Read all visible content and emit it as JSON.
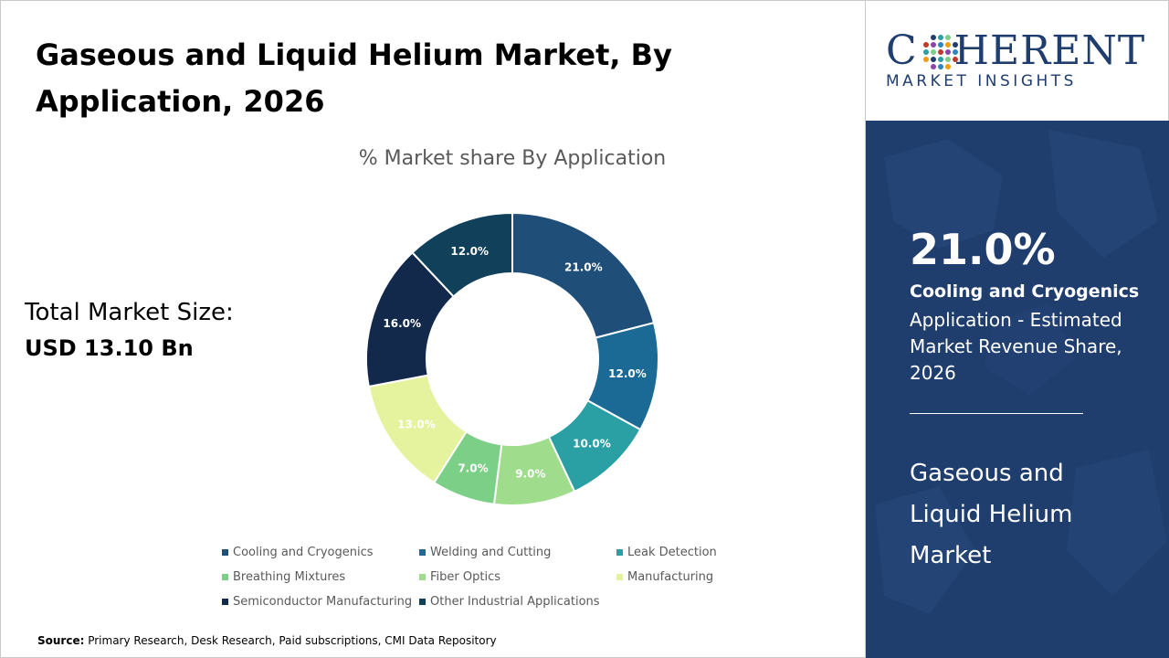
{
  "header": {
    "title": "Gaseous and Liquid Helium Market, By Application, 2026"
  },
  "summary": {
    "total_label": "Total Market Size:",
    "total_value": "USD 13.10 Bn"
  },
  "chart_data": {
    "type": "pie",
    "title": "% Market share By Application",
    "categories": [
      "Cooling and Cryogenics",
      "Welding and Cutting",
      "Leak Detection",
      "Breathing Mixtures",
      "Fiber Optics",
      "Manufacturing",
      "Semiconductor Manufacturing",
      "Other Industrial Applications"
    ],
    "values": [
      21.0,
      12.0,
      10.0,
      7.0,
      9.0,
      13.0,
      16.0,
      12.0
    ],
    "slice_order": [
      "Cooling and Cryogenics",
      "Welding and Cutting",
      "Leak Detection",
      "Fiber Optics",
      "Breathing Mixtures",
      "Manufacturing",
      "Semiconductor Manufacturing",
      "Other Industrial Applications"
    ],
    "data_labels": [
      "21.0%",
      "12.0%",
      "10.0%",
      "7.0%",
      "9.0%",
      "13.0%",
      "16.0%",
      "12.0%"
    ],
    "colors": {
      "Cooling and Cryogenics": "#1f4e79",
      "Welding and Cutting": "#1b6a96",
      "Leak Detection": "#2aa0a4",
      "Breathing Mixtures": "#7ccf86",
      "Fiber Optics": "#9fdc8c",
      "Manufacturing": "#e5f29e",
      "Semiconductor Manufacturing": "#13294b",
      "Other Industrial Applications": "#11405b"
    },
    "label_colors": {
      "Cooling and Cryogenics": "#ffffff",
      "Welding and Cutting": "#ffffff",
      "Leak Detection": "#ffffff",
      "Breathing Mixtures": "#ffffff",
      "Fiber Optics": "#ffffff",
      "Manufacturing": "#ffffff",
      "Semiconductor Manufacturing": "#ffffff",
      "Other Industrial Applications": "#ffffff"
    },
    "donut": true,
    "legend_position": "bottom"
  },
  "legend": {
    "items": [
      "Cooling and Cryogenics",
      "Welding and Cutting",
      "Leak Detection",
      "Breathing Mixtures",
      "Fiber Optics",
      "Manufacturing",
      "Semiconductor Manufacturing",
      "Other Industrial Applications"
    ]
  },
  "footer": {
    "source_label": "Source:",
    "source_text": " Primary Research, Desk Research, Paid subscriptions, CMI Data Repository"
  },
  "logo": {
    "wordmark_prefix": "C",
    "wordmark_suffix": "HERENT",
    "tagline": "MARKET INSIGHTS",
    "brand_color": "#1f3d6e"
  },
  "highlight": {
    "percent": "21.0%",
    "segment": "Cooling and Cryogenics",
    "description": "Application - Estimated Market Revenue Share, 2026",
    "market_name": "Gaseous and Liquid Helium Market",
    "panel_color": "#1f3e6e"
  }
}
